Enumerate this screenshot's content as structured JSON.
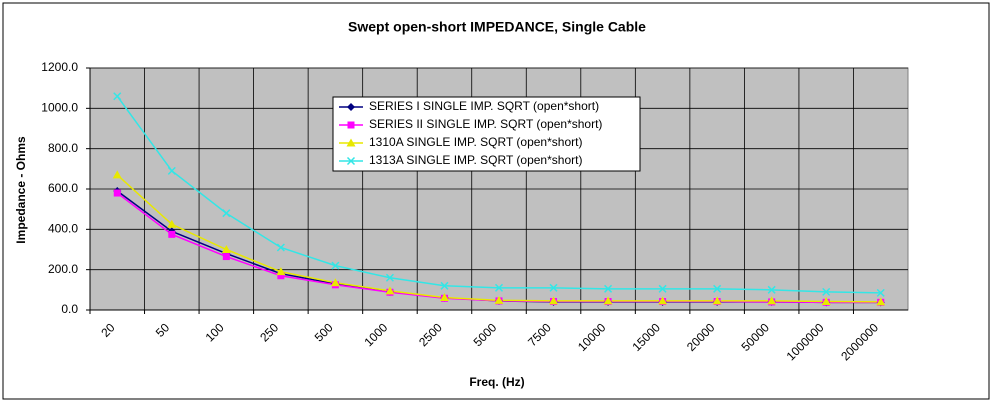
{
  "chart_data": {
    "type": "line",
    "title": "Swept open-short IMPEDANCE, Single Cable",
    "x_label": "Freq. (Hz)",
    "y_label": "Impedance - Ohms",
    "categories": [
      "20",
      "50",
      "100",
      "250",
      "500",
      "1000",
      "2500",
      "5000",
      "7500",
      "10000",
      "15000",
      "20000",
      "50000",
      "1000000",
      "2000000"
    ],
    "series": [
      {
        "name": "SERIES I SINGLE IMP. SQRT (open*short)",
        "color": "#000080",
        "marker": "diamond",
        "values": [
          590,
          390,
          280,
          180,
          130,
          90,
          60,
          45,
          40,
          40,
          40,
          40,
          40,
          38,
          38
        ]
      },
      {
        "name": "SERIES II SINGLE IMP. SQRT (open*short)",
        "color": "#ff00ff",
        "marker": "square",
        "values": [
          580,
          375,
          265,
          170,
          125,
          88,
          58,
          45,
          42,
          42,
          42,
          42,
          40,
          38,
          38
        ]
      },
      {
        "name": "1310A SINGLE IMP. SQRT (open*short)",
        "color": "#e8e800",
        "marker": "triangle",
        "values": [
          670,
          425,
          300,
          190,
          135,
          95,
          62,
          48,
          45,
          45,
          45,
          45,
          45,
          42,
          40
        ]
      },
      {
        "name": "1313A SINGLE IMP. SQRT (open*short)",
        "color": "#33e6e6",
        "marker": "x",
        "values": [
          1060,
          690,
          480,
          310,
          220,
          160,
          120,
          110,
          110,
          105,
          105,
          105,
          100,
          90,
          85
        ]
      }
    ],
    "ylim": [
      0,
      1200
    ],
    "yticks": [
      {
        "value": 0,
        "label": "0.0"
      },
      {
        "value": 200,
        "label": "200.0"
      },
      {
        "value": 400,
        "label": "400.0"
      },
      {
        "value": 600,
        "label": "600.0"
      },
      {
        "value": 800,
        "label": "800.0"
      },
      {
        "value": 1000,
        "label": "1000.0"
      },
      {
        "value": 1200,
        "label": "1200.0"
      }
    ],
    "grid": true,
    "plot_background": "#c0c0c0",
    "legend": "top-center"
  }
}
